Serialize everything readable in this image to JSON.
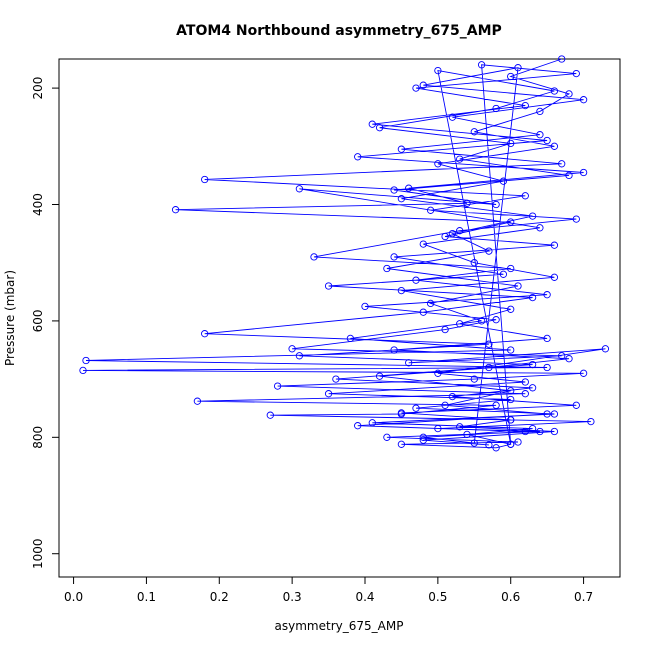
{
  "chart_data": {
    "type": "line",
    "title": "ATOM4 Northbound asymmetry_675_AMP",
    "xlabel": "asymmetry_675_AMP",
    "ylabel": "Pressure (mbar)",
    "xlim": [
      -0.02,
      0.75
    ],
    "ylim": [
      1040,
      150
    ],
    "y_inverted": true,
    "x_ticks": [
      0.0,
      0.1,
      0.2,
      0.3,
      0.4,
      0.5,
      0.6,
      0.7
    ],
    "x_tick_labels": [
      "0.0",
      "0.1",
      "0.2",
      "0.3",
      "0.4",
      "0.5",
      "0.6",
      "0.7"
    ],
    "y_ticks": [
      200,
      400,
      600,
      800,
      1000
    ],
    "y_tick_labels": [
      "200",
      "400",
      "600",
      "800",
      "1000"
    ],
    "marker": "open-circle",
    "grid": false,
    "series": [
      {
        "color": "#0000ff",
        "points": [
          [
            0.67,
            150
          ],
          [
            0.6,
            180
          ],
          [
            0.68,
            210
          ],
          [
            0.64,
            240
          ],
          [
            0.55,
            275
          ],
          [
            0.66,
            300
          ],
          [
            0.5,
            330
          ],
          [
            0.59,
            360
          ],
          [
            0.45,
            390
          ],
          [
            0.63,
            420
          ],
          [
            0.52,
            450
          ],
          [
            0.57,
            480
          ],
          [
            0.43,
            510
          ],
          [
            0.61,
            540
          ],
          [
            0.49,
            570
          ],
          [
            0.56,
            600
          ],
          [
            0.38,
            630
          ],
          [
            0.6,
            650
          ],
          [
            0.017,
            668
          ],
          [
            0.65,
            680
          ],
          [
            0.013,
            685
          ],
          [
            0.7,
            690
          ],
          [
            0.55,
            700
          ],
          [
            0.28,
            712
          ],
          [
            0.62,
            725
          ],
          [
            0.17,
            738
          ],
          [
            0.58,
            745
          ],
          [
            0.45,
            760
          ],
          [
            0.27,
            762
          ],
          [
            0.6,
            770
          ],
          [
            0.71,
            773
          ],
          [
            0.5,
            785
          ],
          [
            0.64,
            790
          ],
          [
            0.43,
            800
          ],
          [
            0.61,
            808
          ],
          [
            0.45,
            812
          ],
          [
            0.58,
            818
          ],
          [
            0.6,
            812
          ],
          [
            0.56,
            160
          ],
          [
            0.69,
            175
          ],
          [
            0.47,
            200
          ],
          [
            0.62,
            230
          ],
          [
            0.41,
            262
          ],
          [
            0.65,
            290
          ],
          [
            0.39,
            318
          ],
          [
            0.7,
            345
          ],
          [
            0.46,
            372
          ],
          [
            0.54,
            398
          ],
          [
            0.14,
            409
          ],
          [
            0.6,
            430
          ],
          [
            0.51,
            455
          ],
          [
            0.66,
            470
          ],
          [
            0.44,
            490
          ],
          [
            0.59,
            520
          ],
          [
            0.35,
            540
          ],
          [
            0.63,
            560
          ],
          [
            0.48,
            585
          ],
          [
            0.18,
            622
          ],
          [
            0.57,
            640
          ],
          [
            0.31,
            660
          ],
          [
            0.63,
            675
          ],
          [
            0.42,
            695
          ],
          [
            0.6,
            720
          ],
          [
            0.51,
            745
          ],
          [
            0.65,
            760
          ],
          [
            0.39,
            780
          ],
          [
            0.62,
            790
          ],
          [
            0.48,
            800
          ],
          [
            0.55,
            810
          ],
          [
            0.61,
            165
          ],
          [
            0.48,
            195
          ],
          [
            0.7,
            220
          ],
          [
            0.52,
            250
          ],
          [
            0.64,
            280
          ],
          [
            0.45,
            305
          ],
          [
            0.67,
            330
          ],
          [
            0.18,
            357
          ],
          [
            0.62,
            385
          ],
          [
            0.49,
            410
          ],
          [
            0.69,
            425
          ],
          [
            0.53,
            445
          ],
          [
            0.33,
            490
          ],
          [
            0.6,
            510
          ],
          [
            0.47,
            530
          ],
          [
            0.65,
            555
          ],
          [
            0.4,
            575
          ],
          [
            0.58,
            598
          ],
          [
            0.51,
            615
          ],
          [
            0.3,
            648
          ],
          [
            0.67,
            660
          ],
          [
            0.46,
            672
          ],
          [
            0.73,
            648
          ],
          [
            0.5,
            690
          ],
          [
            0.62,
            705
          ],
          [
            0.35,
            725
          ],
          [
            0.6,
            735
          ],
          [
            0.47,
            750
          ],
          [
            0.66,
            760
          ],
          [
            0.41,
            775
          ],
          [
            0.63,
            785
          ],
          [
            0.54,
            795
          ],
          [
            0.6,
            812
          ],
          [
            0.5,
            170
          ],
          [
            0.66,
            205
          ],
          [
            0.58,
            235
          ],
          [
            0.42,
            268
          ],
          [
            0.6,
            295
          ],
          [
            0.53,
            322
          ],
          [
            0.68,
            350
          ],
          [
            0.44,
            375
          ],
          [
            0.58,
            400
          ],
          [
            0.31,
            373
          ],
          [
            0.64,
            440
          ],
          [
            0.48,
            468
          ],
          [
            0.55,
            500
          ],
          [
            0.66,
            525
          ],
          [
            0.45,
            548
          ],
          [
            0.6,
            580
          ],
          [
            0.53,
            605
          ],
          [
            0.65,
            630
          ],
          [
            0.44,
            650
          ],
          [
            0.68,
            665
          ],
          [
            0.57,
            680
          ],
          [
            0.36,
            700
          ],
          [
            0.63,
            715
          ],
          [
            0.52,
            730
          ],
          [
            0.69,
            745
          ],
          [
            0.45,
            758
          ],
          [
            0.6,
            770
          ],
          [
            0.53,
            782
          ],
          [
            0.66,
            790
          ],
          [
            0.48,
            805
          ],
          [
            0.57,
            813
          ]
        ]
      }
    ]
  }
}
